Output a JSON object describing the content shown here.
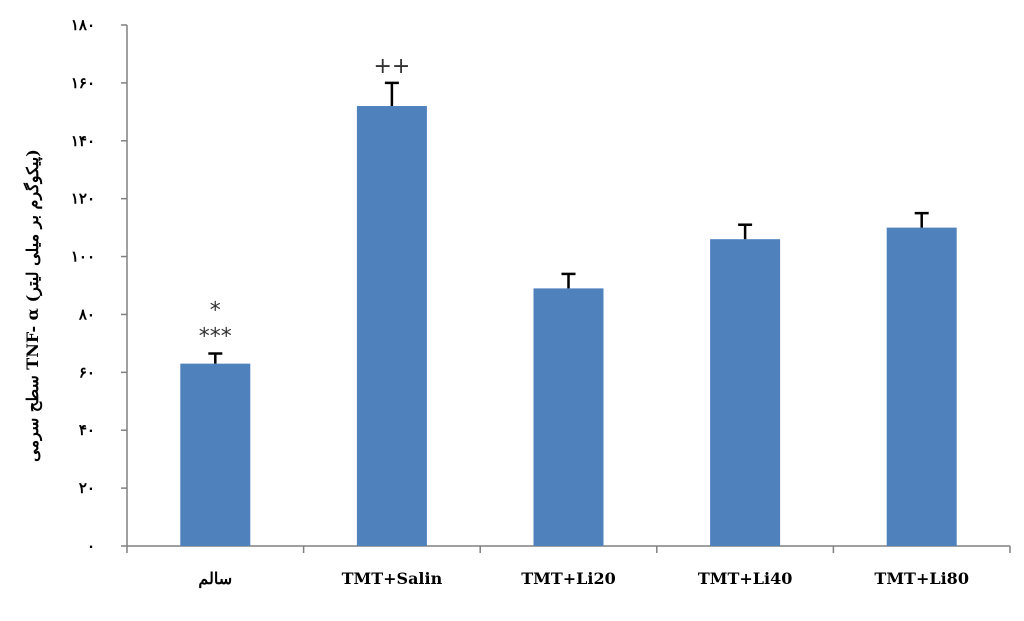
{
  "chart_data": {
    "type": "bar",
    "title": "",
    "xlabel": "",
    "ylabel": "سطح سرمی TNF- α (پیکوگرم بر میلی لیتر)",
    "ylim": [
      0,
      180
    ],
    "yticks": [
      0,
      20,
      40,
      60,
      80,
      100,
      120,
      140,
      160,
      180
    ],
    "ytick_labels": [
      "٠",
      "٢٠",
      "۴٠",
      "۶٠",
      "٨٠",
      "١٠٠",
      "١٢٠",
      "١۴٠",
      "١۶٠",
      "١٨٠"
    ],
    "categories": [
      "سالم",
      "TMT+Salin",
      "TMT+Li20",
      "TMT+Li40",
      "TMT+Li80"
    ],
    "values": [
      63,
      152,
      89,
      106,
      110
    ],
    "errors": [
      3.5,
      8,
      5,
      5,
      5
    ],
    "annotations": [
      {
        "category_index": 0,
        "lines": [
          "*",
          "***"
        ]
      },
      {
        "category_index": 1,
        "lines": [
          "++"
        ]
      }
    ],
    "bar_color": "#4f81bd",
    "grid": false,
    "legend": "none"
  }
}
